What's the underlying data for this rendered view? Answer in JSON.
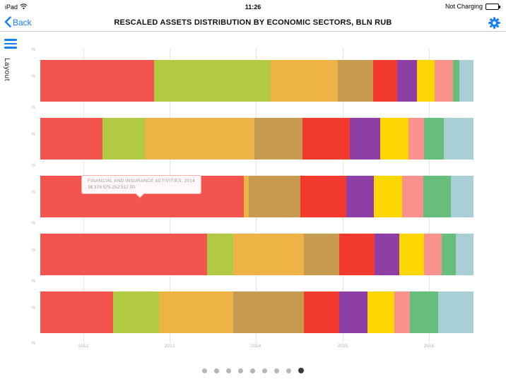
{
  "status_bar": {
    "device": "iPad",
    "time": "11:26",
    "battery_status": "Not Charging"
  },
  "nav": {
    "back_label": "Back",
    "title": "RESCALED ASSETS DISTRIBUTION BY ECONOMIC SECTORS, BLN RUB"
  },
  "sidebar": {
    "layout_label": "Layout"
  },
  "icons": {
    "back": "chevron-left-icon",
    "settings": "gear-icon",
    "menu": "hamburger-menu-icon",
    "wifi": "wifi-icon",
    "battery": "battery-icon"
  },
  "colors": {
    "accent": "#157efb",
    "gridline": "#e7e7e7",
    "tooltip_border": "#f3b1ac",
    "tick_text": "#b3b3b3"
  },
  "tooltip": {
    "title": "FINANCIAL AND INSURANCE ACTIVITIES, 2014",
    "value": "36 379 575 252 517,00"
  },
  "chart_data": {
    "type": "bar",
    "variant": "horizontal-100-percent-stacked",
    "title": "RESCALED ASSETS DISTRIBUTION BY ECONOMIC SECTORS, BLN RUB",
    "x_tick_labels": [
      "2012",
      "2013",
      "2014",
      "2015",
      "2016"
    ],
    "y_tick_label": "%",
    "grid": true,
    "segment_colors": [
      "#f4544e",
      "#b2ca43",
      "#edb445",
      "#c69a50",
      "#f23a2e",
      "#8e3fa6",
      "#fcd703",
      "#f9918c",
      "#67bd7c",
      "#a9cfd6"
    ],
    "rows": [
      {
        "year": "2012",
        "values": [
          26.3,
          26.9,
          15.5,
          8.2,
          5.5,
          4.6,
          4.1,
          4.1,
          1.5,
          3.3
        ]
      },
      {
        "year": "2013",
        "values": [
          14.4,
          9.8,
          25.3,
          11.1,
          10.9,
          7.0,
          6.5,
          3.6,
          4.6,
          6.8
        ]
      },
      {
        "year": "2014",
        "values": [
          47.0,
          0,
          1.1,
          11.9,
          10.6,
          6.4,
          6.5,
          4.9,
          6.4,
          5.2
        ]
      },
      {
        "year": "2015",
        "values": [
          38.5,
          6.0,
          16.3,
          8.2,
          8.2,
          5.7,
          5.7,
          4.1,
          3.3,
          4.0
        ]
      },
      {
        "year": "2016",
        "values": [
          16.8,
          10.6,
          17.1,
          16.3,
          8.2,
          6.5,
          6.2,
          3.6,
          6.5,
          8.2
        ]
      }
    ],
    "highlighted_segment": {
      "row_year": "2014",
      "label": "FINANCIAL AND INSURANCE ACTIVITIES, 2014",
      "value": "36 379 575 252 517,00"
    }
  },
  "pagination": {
    "total_dots": 9,
    "active_index": 8
  }
}
